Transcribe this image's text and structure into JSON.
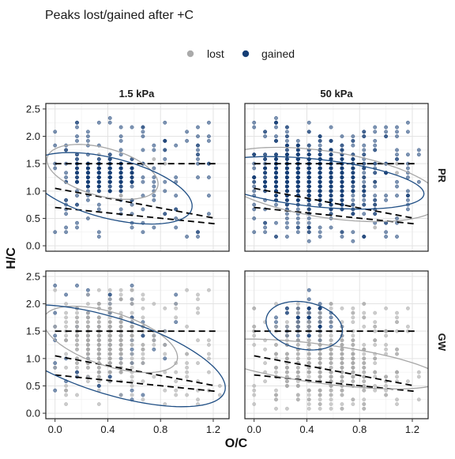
{
  "chart_data": {
    "type": "scatter",
    "title": "Peaks lost/gained after +C",
    "xlabel": "O/C",
    "ylabel": "H/C",
    "xlim": [
      -0.07,
      1.32
    ],
    "ylim": [
      -0.1,
      2.6
    ],
    "x_ticks": [
      0.0,
      0.4,
      0.8,
      1.2
    ],
    "x_tick_labels": [
      "0.0",
      "0.4",
      "0.8",
      "1.2"
    ],
    "y_ticks": [
      0.0,
      0.5,
      1.0,
      1.5,
      2.0,
      2.5
    ],
    "y_tick_labels": [
      "0.0",
      "0.5",
      "1.0",
      "1.5",
      "2.0",
      "2.5"
    ],
    "facet_columns": [
      "1.5 kPa",
      "50 kPa"
    ],
    "facet_rows": [
      "PR",
      "GW"
    ],
    "legend": {
      "position": "top",
      "entries": [
        {
          "label": "lost",
          "color": "#aaaaaa"
        },
        {
          "label": "gained",
          "color": "#153e75"
        }
      ]
    },
    "reference_lines": [
      {
        "name": "H/C = 1.5",
        "points": [
          [
            0.0,
            1.5
          ],
          [
            1.22,
            1.5
          ]
        ]
      },
      {
        "name": "upper boundary",
        "points": [
          [
            0.0,
            1.05
          ],
          [
            1.22,
            0.5
          ]
        ]
      },
      {
        "name": "lower boundary",
        "points": [
          [
            0.0,
            0.7
          ],
          [
            1.22,
            0.4
          ]
        ]
      }
    ],
    "panels": [
      {
        "col": "1.5 kPa",
        "row": "PR",
        "lost": {
          "n": 8,
          "center": [
            0.7,
            1.2
          ],
          "sd": [
            0.25,
            0.5
          ]
        },
        "gained": {
          "n": 360,
          "center": [
            0.38,
            1.28
          ],
          "sd": [
            0.11,
            0.13
          ],
          "bg": {
            "n": 140,
            "x": [
              0.0,
              1.22
            ],
            "y": [
              0.15,
              2.3
            ]
          }
        },
        "ellipses": [
          {
            "series": "lost",
            "center": [
              0.36,
              1.35
            ],
            "rx": 0.34,
            "ry": 0.56,
            "rotation_deg": 34
          },
          {
            "series": "gained",
            "center": [
              0.42,
              1.05
            ],
            "rx": 0.45,
            "ry": 0.78,
            "rotation_deg": 42
          }
        ]
      },
      {
        "col": "50 kPa",
        "row": "PR",
        "lost": {
          "n": 10,
          "center": [
            1.0,
            1.0
          ],
          "sd": [
            0.2,
            0.4
          ]
        },
        "gained": {
          "n": 1400,
          "center": [
            0.43,
            1.28
          ],
          "sd": [
            0.15,
            0.24
          ],
          "bg": {
            "n": 260,
            "x": [
              0.0,
              1.22
            ],
            "y": [
              0.1,
              2.3
            ]
          }
        },
        "ellipses": [
          {
            "series": "lost",
            "center": [
              0.55,
              1.12
            ],
            "rx": 0.56,
            "ry": 0.95,
            "rotation_deg": 60
          },
          {
            "series": "gained",
            "center": [
              0.46,
              1.15
            ],
            "rx": 0.42,
            "ry": 0.86,
            "rotation_deg": 72
          }
        ]
      },
      {
        "col": "1.5 kPa",
        "row": "GW",
        "lost": {
          "n": 400,
          "center": [
            0.38,
            1.3
          ],
          "sd": [
            0.13,
            0.28
          ],
          "bg": {
            "n": 130,
            "x": [
              0.0,
              1.22
            ],
            "y": [
              0.1,
              2.3
            ]
          }
        },
        "gained": {
          "n": 90,
          "center": [
            0.42,
            1.3
          ],
          "sd": [
            0.25,
            0.5
          ]
        },
        "ellipses": [
          {
            "series": "lost",
            "center": [
              0.42,
              1.35
            ],
            "rx": 0.37,
            "ry": 0.7,
            "rotation_deg": 36
          },
          {
            "series": "gained",
            "center": [
              0.42,
              1.05
            ],
            "rx": 0.55,
            "ry": 1.15,
            "rotation_deg": 42
          }
        ]
      },
      {
        "col": "50 kPa",
        "row": "GW",
        "lost": {
          "n": 420,
          "center": [
            0.55,
            0.9
          ],
          "sd": [
            0.2,
            0.35
          ],
          "bg": {
            "n": 120,
            "x": [
              0.0,
              1.22
            ],
            "y": [
              0.1,
              2.0
            ]
          }
        },
        "gained": {
          "n": 150,
          "center": [
            0.4,
            1.65
          ],
          "sd": [
            0.1,
            0.15
          ]
        },
        "ellipses": [
          {
            "series": "lost",
            "center": [
              0.52,
              0.9
            ],
            "rx": 0.34,
            "ry": 0.95,
            "rotation_deg": 70
          },
          {
            "series": "gained",
            "center": [
              0.38,
              1.6
            ],
            "rx": 0.28,
            "ry": 0.45,
            "rotation_deg": 12
          }
        ]
      }
    ]
  }
}
